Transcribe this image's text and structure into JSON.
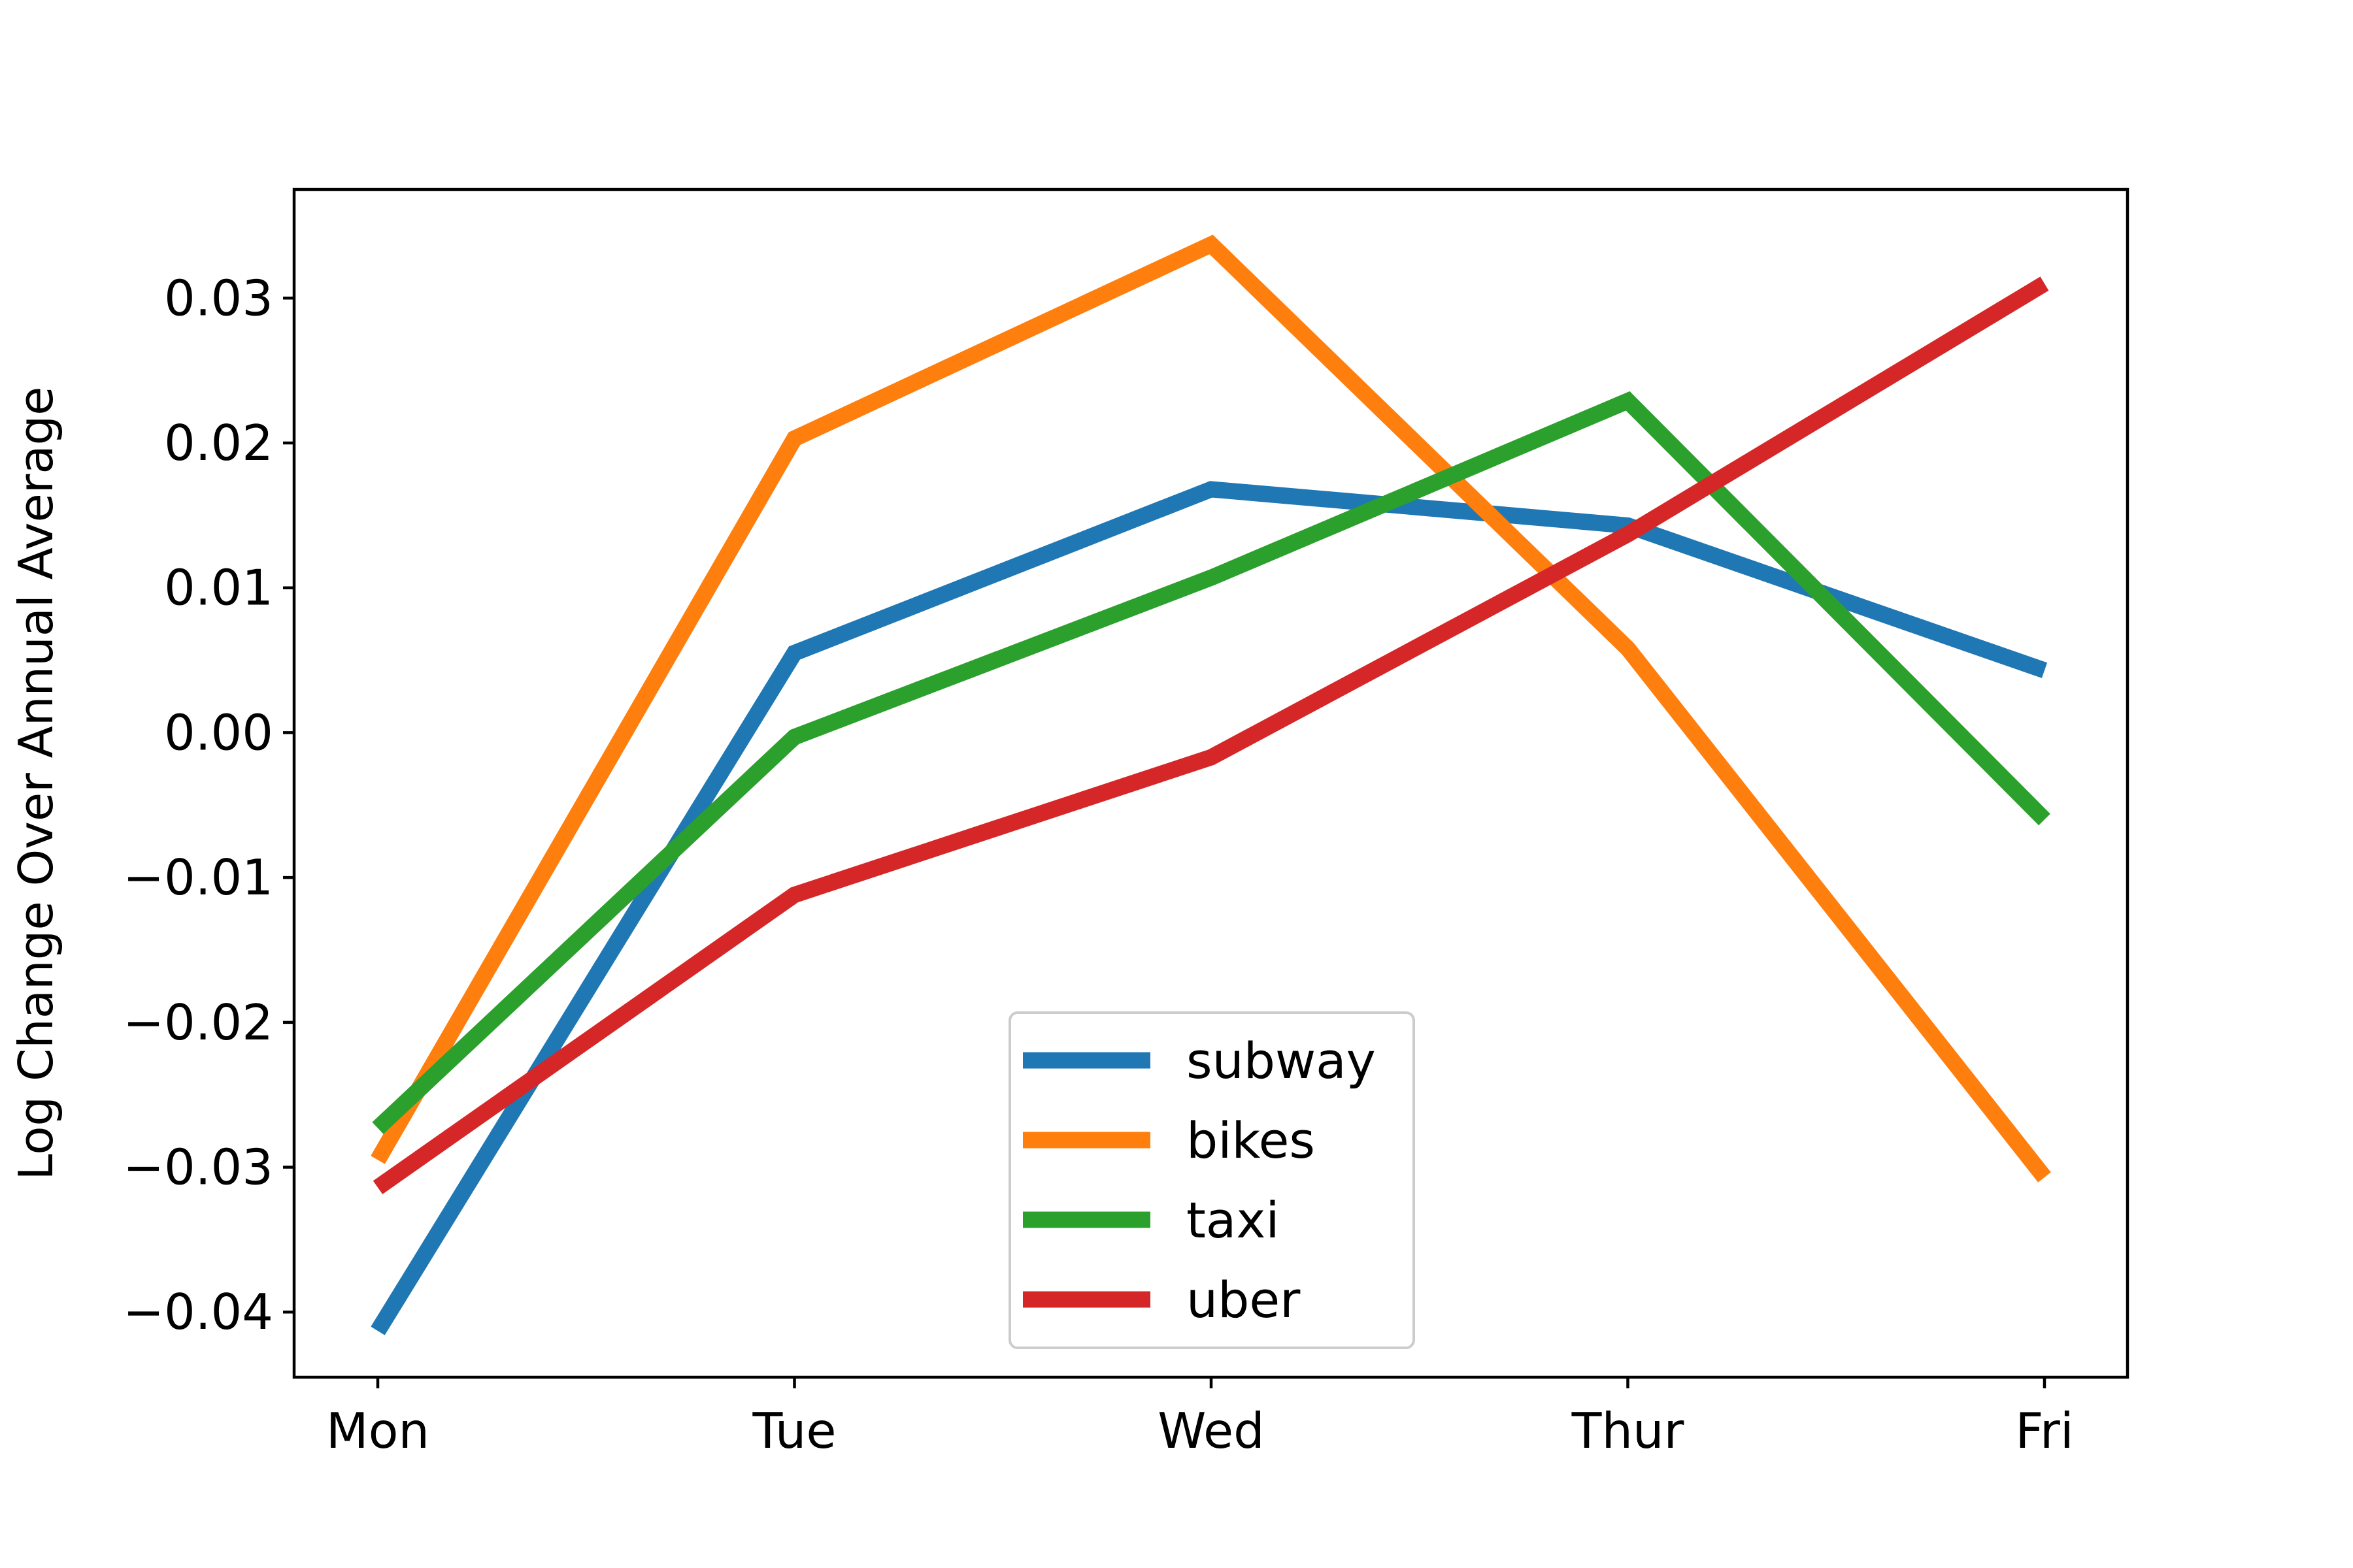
{
  "chart_data": {
    "type": "line",
    "title": "",
    "xlabel": "",
    "ylabel": "Log Change Over Annual Average",
    "categories": [
      "Mon",
      "Tue",
      "Wed",
      "Thur",
      "Fri"
    ],
    "yticks": [
      -0.04,
      -0.03,
      -0.02,
      -0.01,
      0.0,
      0.01,
      0.02,
      0.03
    ],
    "ytick_labels": [
      "−0.04",
      "−0.03",
      "−0.02",
      "−0.01",
      "0.00",
      "0.01",
      "0.02",
      "0.03"
    ],
    "ylim": [
      -0.0445,
      0.0375
    ],
    "grid": false,
    "legend_position": "lower-center",
    "series": [
      {
        "name": "subway",
        "color": "#1f77b4",
        "values": [
          -0.0413,
          0.0055,
          0.0168,
          0.0143,
          0.0043
        ]
      },
      {
        "name": "bikes",
        "color": "#ff7f0e",
        "values": [
          -0.0295,
          0.0203,
          0.0337,
          0.0058,
          -0.0307
        ]
      },
      {
        "name": "taxi",
        "color": "#2ca02c",
        "values": [
          -0.0273,
          -0.0003,
          0.0107,
          0.0229,
          -0.006
        ]
      },
      {
        "name": "uber",
        "color": "#d62728",
        "values": [
          -0.0314,
          -0.0112,
          -0.0017,
          0.0137,
          0.031
        ]
      }
    ]
  }
}
